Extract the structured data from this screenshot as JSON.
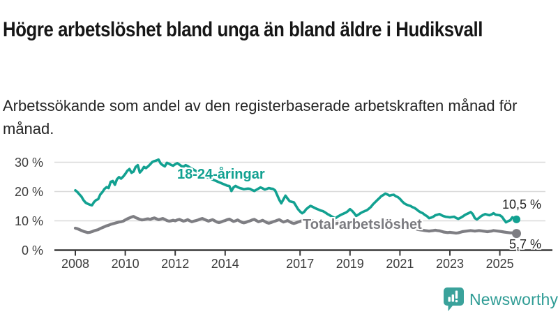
{
  "header": {
    "title": "Högre arbetslöshet bland unga än bland äldre i Hudiksvall",
    "subtitle": "Arbetssökande som andel av den registerbaserade arbetskraften månad för månad."
  },
  "footer": {
    "brand": "Newsworthy"
  },
  "colors": {
    "accent_teal": "#12a191",
    "line_gray": "#7e7e83",
    "grid": "#d9d9d9",
    "axis": "#3a3a3a",
    "logo_teal": "#2f9c95"
  },
  "chart_data": {
    "type": "line",
    "title": "Högre arbetslöshet bland unga än bland äldre i Hudiksvall",
    "subtitle": "Arbetssökande som andel av den registerbaserade arbetskraften månad för månad.",
    "unit": "%",
    "frequency": "monthly",
    "x_start": "2008-01",
    "x_end": "2025-09",
    "grid": "horizontal-only",
    "legend": "inline-labels",
    "ylim": [
      0,
      33
    ],
    "y_ticks": [
      {
        "v": 0,
        "label": "0 %"
      },
      {
        "v": 10,
        "label": "10 %"
      },
      {
        "v": 20,
        "label": "20 %"
      },
      {
        "v": 30,
        "label": "30 %"
      }
    ],
    "x_ticks": [
      {
        "v": 2008,
        "label": "2008"
      },
      {
        "v": 2010,
        "label": "2010"
      },
      {
        "v": 2012,
        "label": "2012"
      },
      {
        "v": 2014,
        "label": "2014"
      },
      {
        "v": 2017,
        "label": "2017"
      },
      {
        "v": 2019,
        "label": "2019"
      },
      {
        "v": 2021,
        "label": "2021"
      },
      {
        "v": 2023,
        "label": "2023"
      },
      {
        "v": 2025,
        "label": "2025"
      }
    ],
    "series": [
      {
        "name": "18-24-åringar",
        "color": "#12a191",
        "end_value": 10.5,
        "end_label": "10,5 %",
        "values": [
          20.4,
          19.8,
          19.0,
          18.2,
          17.0,
          16.2,
          15.8,
          15.5,
          15.3,
          16.4,
          17.1,
          17.4,
          19.0,
          19.8,
          20.9,
          21.5,
          21.2,
          23.3,
          23.6,
          22.3,
          24.2,
          24.9,
          24.4,
          25.1,
          26.0,
          27.1,
          27.7,
          26.4,
          26.8,
          28.4,
          29.0,
          26.5,
          27.3,
          28.4,
          28.0,
          28.6,
          29.3,
          30.1,
          30.4,
          30.6,
          30.9,
          29.6,
          29.0,
          28.6,
          29.8,
          29.5,
          29.1,
          28.8,
          29.3,
          29.7,
          29.2,
          28.7,
          28.5,
          29.0,
          28.7,
          28.2,
          27.8,
          27.4,
          27.0,
          26.6,
          26.2,
          25.8,
          25.4,
          25.0,
          24.7,
          24.4,
          24.1,
          23.8,
          23.5,
          23.2,
          22.9,
          22.6,
          22.3,
          22.0,
          21.9,
          20.2,
          21.4,
          21.9,
          21.5,
          21.2,
          21.0,
          20.8,
          20.9,
          21.0,
          20.9,
          20.5,
          20.2,
          20.6,
          21.0,
          21.4,
          21.1,
          20.7,
          20.9,
          21.2,
          21.0,
          20.9,
          20.4,
          18.8,
          17.2,
          16.0,
          17.3,
          18.6,
          17.6,
          16.7,
          16.5,
          16.3,
          15.2,
          14.0,
          13.2,
          12.6,
          13.1,
          14.0,
          14.6,
          15.1,
          14.8,
          14.4,
          14.1,
          13.8,
          13.5,
          13.3,
          12.9,
          12.4,
          12.0,
          11.6,
          11.2,
          10.9,
          11.4,
          11.8,
          12.2,
          12.5,
          12.8,
          13.3,
          14.0,
          13.4,
          12.6,
          11.7,
          12.1,
          12.6,
          13.0,
          13.3,
          13.6,
          14.1,
          14.7,
          15.6,
          16.3,
          17.0,
          17.7,
          18.4,
          18.8,
          19.3,
          19.0,
          18.6,
          18.8,
          18.9,
          18.4,
          18.1,
          17.5,
          16.7,
          16.0,
          15.6,
          15.3,
          15.1,
          14.7,
          14.4,
          13.9,
          13.3,
          12.9,
          12.6,
          12.0,
          11.6,
          10.9,
          11.1,
          11.4,
          11.9,
          12.1,
          12.3,
          11.9,
          11.6,
          11.4,
          11.3,
          11.2,
          11.3,
          11.4,
          11.0,
          10.7,
          11.0,
          11.4,
          11.9,
          12.3,
          12.6,
          13.0,
          12.3,
          10.9,
          10.5,
          11.0,
          11.6,
          12.0,
          12.3,
          12.1,
          11.9,
          12.2,
          12.6,
          12.1,
          12.0,
          11.9,
          11.4,
          10.4,
          9.5,
          9.9,
          10.2,
          11.2,
          10.9,
          10.5
        ]
      },
      {
        "name": "Total arbetslöshet",
        "color": "#7e7e83",
        "end_value": 5.7,
        "end_label": "5,7 %",
        "values": [
          7.5,
          7.3,
          7.0,
          6.7,
          6.4,
          6.2,
          6.0,
          6.1,
          6.3,
          6.6,
          6.8,
          7.0,
          7.4,
          7.7,
          8.0,
          8.3,
          8.5,
          8.8,
          9.0,
          9.2,
          9.4,
          9.6,
          9.7,
          9.9,
          10.3,
          10.7,
          11.0,
          11.3,
          11.5,
          11.1,
          10.8,
          10.5,
          10.3,
          10.4,
          10.6,
          10.7,
          10.5,
          10.8,
          11.0,
          10.7,
          10.4,
          10.6,
          10.8,
          10.5,
          10.1,
          9.9,
          10.0,
          10.2,
          10.0,
          10.3,
          10.5,
          10.2,
          9.9,
          10.1,
          10.4,
          10.0,
          9.7,
          9.9,
          10.1,
          10.3,
          10.6,
          10.8,
          10.5,
          10.2,
          9.9,
          10.2,
          10.4,
          10.0,
          9.6,
          9.4,
          9.6,
          9.9,
          10.1,
          10.4,
          10.6,
          10.2,
          9.8,
          10.0,
          10.3,
          9.9,
          9.5,
          9.3,
          9.5,
          9.8,
          10.0,
          10.3,
          10.5,
          10.1,
          9.7,
          9.9,
          10.2,
          9.8,
          9.4,
          9.2,
          9.4,
          9.7,
          9.9,
          10.2,
          10.4,
          10.0,
          9.6,
          9.8,
          10.1,
          9.7,
          9.3,
          9.1,
          9.3,
          9.6,
          9.8,
          10.1,
          10.3,
          9.9,
          9.5,
          9.7,
          10.0,
          9.6,
          9.2,
          9.0,
          9.1,
          9.3,
          9.5,
          9.7,
          9.4,
          9.1,
          8.8,
          9.0,
          9.2,
          8.9,
          8.6,
          8.4,
          8.5,
          8.7,
          8.9,
          9.1,
          8.8,
          8.5,
          8.3,
          8.5,
          8.7,
          8.4,
          8.2,
          8.3,
          8.5,
          8.8,
          9.0,
          9.3,
          9.6,
          9.9,
          10.1,
          9.9,
          9.7,
          9.5,
          9.3,
          9.1,
          8.9,
          8.8,
          8.7,
          8.5,
          8.3,
          8.1,
          7.9,
          7.7,
          7.6,
          7.4,
          7.2,
          7.0,
          6.9,
          6.8,
          6.7,
          6.6,
          6.5,
          6.6,
          6.7,
          6.8,
          6.7,
          6.6,
          6.4,
          6.2,
          6.1,
          6.0,
          6.1,
          6.0,
          5.9,
          5.8,
          5.9,
          6.1,
          6.3,
          6.4,
          6.5,
          6.6,
          6.7,
          6.6,
          6.5,
          6.6,
          6.7,
          6.6,
          6.5,
          6.4,
          6.3,
          6.4,
          6.5,
          6.7,
          6.6,
          6.5,
          6.4,
          6.3,
          6.2,
          6.1,
          6.0,
          5.9,
          5.9,
          5.8,
          5.7
        ]
      }
    ]
  }
}
